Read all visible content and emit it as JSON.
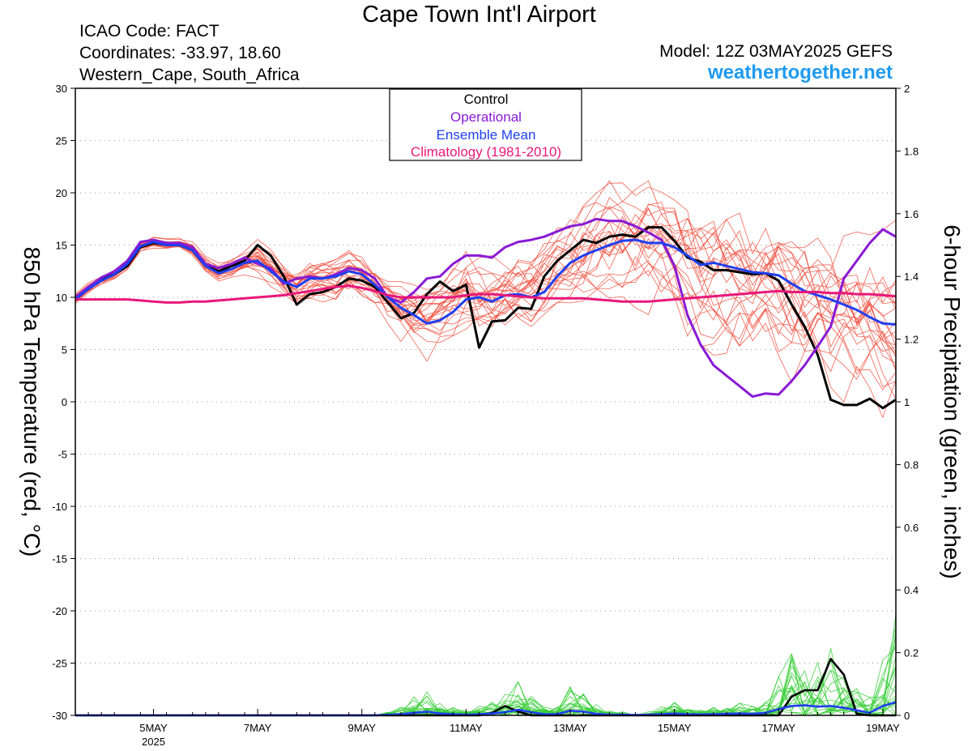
{
  "header": {
    "title": "Cape Town Int'l Airport",
    "icao": "ICAO Code: FACT",
    "coordinates": "Coordinates: -33.97, 18.60",
    "region": "Western_Cape, South_Africa",
    "model": "Model: 12Z 03MAY2025 GEFS",
    "site": "weathertogether.net"
  },
  "legend": {
    "entries": [
      {
        "label": "Control",
        "color": "#000000"
      },
      {
        "label": "Operational",
        "color": "#8a1ad6"
      },
      {
        "label": "Ensemble Mean",
        "color": "#1f3ff0"
      },
      {
        "label": "Climatology (1981-2010)",
        "color": "#e8187a"
      }
    ]
  },
  "colors": {
    "control": "#000000",
    "operational": "#8a1ad6",
    "mean": "#1f3ff0",
    "climatology": "#e8187a",
    "members_temp": "#f04a3a",
    "members_precip": "#33cc33"
  },
  "chart_data": {
    "type": "line",
    "ylabel": "850 hPa Temperature (red, °C)",
    "y2label": "6-hour Precipitation (green, inches)",
    "ylim": [
      -30,
      30
    ],
    "y2lim": [
      0,
      2
    ],
    "yticks": [
      "30",
      "25",
      "20",
      "15",
      "10",
      "5",
      "0",
      "-5",
      "-10",
      "-15",
      "-20",
      "-25",
      "-30"
    ],
    "y2ticks": [
      "2",
      "1.8",
      "1.6",
      "1.4",
      "1.2",
      "1",
      "0.8",
      "0.6",
      "0.4",
      "0.2",
      "0"
    ],
    "xlim": [
      0,
      63
    ],
    "x_unit": "6-hour steps from 18Z 03MAY2025",
    "xticks": [
      {
        "label": "5MAY",
        "sublabel": "2025",
        "x": 6
      },
      {
        "label": "7MAY",
        "x": 14
      },
      {
        "label": "9MAY",
        "x": 22
      },
      {
        "label": "11MAY",
        "x": 30
      },
      {
        "label": "13MAY",
        "x": 38
      },
      {
        "label": "15MAY",
        "x": 46
      },
      {
        "label": "17MAY",
        "x": 54
      },
      {
        "label": "19MAY",
        "x": 62
      }
    ],
    "grid": true,
    "legend_position": "top-center",
    "series": [
      {
        "name": "Control",
        "axis": "temp",
        "values": [
          10,
          11,
          11.8,
          12.2,
          13,
          14.8,
          15.2,
          15,
          15,
          14.5,
          13,
          12.5,
          13,
          13.5,
          15,
          14,
          12,
          9.3,
          10.3,
          10.5,
          11,
          11.8,
          11.6,
          11,
          9.5,
          8,
          8.5,
          10.3,
          11.5,
          10.6,
          11.2,
          5.2,
          7.7,
          7.8,
          9,
          8.9,
          12,
          13.5,
          14.5,
          15.5,
          15.2,
          15.8,
          16,
          15.8,
          16.7,
          16.7,
          15.4,
          13.8,
          13.4,
          12.6,
          12.6,
          12.4,
          12.2,
          12.3,
          11.6,
          9.3,
          7.2,
          4.5,
          0.2,
          -0.3,
          -0.3,
          0.3,
          -0.6,
          0.2
        ]
      },
      {
        "name": "Operational",
        "axis": "temp",
        "values": [
          10,
          11,
          11.9,
          12.5,
          13.5,
          15.3,
          15.5,
          15.2,
          15.2,
          14.8,
          13.2,
          12.8,
          13.2,
          13.8,
          13.2,
          12.8,
          11.3,
          11.8,
          12,
          11.8,
          12.2,
          12.8,
          12.6,
          11.8,
          10,
          9.5,
          10.5,
          11.8,
          12,
          13.2,
          14,
          14,
          13.8,
          14.8,
          15.3,
          15.5,
          15.8,
          16.3,
          16.8,
          17,
          17.5,
          17.3,
          17.3,
          16.8,
          16.2,
          15.5,
          13,
          8.3,
          5.5,
          3.5,
          2.5,
          1.5,
          0.5,
          0.8,
          0.7,
          2,
          3.5,
          5.3,
          7.2,
          11.8,
          13.5,
          15.2,
          16.5,
          15.8
        ]
      },
      {
        "name": "Ensemble Mean",
        "axis": "temp",
        "values": [
          9.8,
          10.8,
          11.6,
          12.2,
          13.2,
          14.9,
          15.3,
          15,
          15,
          14.5,
          13,
          12.3,
          12.7,
          13.3,
          13.5,
          12.5,
          11.5,
          11,
          11.8,
          11.8,
          12,
          12.5,
          12.2,
          11.2,
          10,
          9,
          8.3,
          7.5,
          7.8,
          8.6,
          9.8,
          10,
          9.6,
          10.2,
          10.3,
          10,
          10.5,
          12,
          13.3,
          14,
          14.5,
          15,
          15.4,
          15.5,
          15.2,
          15.2,
          14.8,
          14,
          13.1,
          13.3,
          13,
          12.7,
          12.4,
          12.3,
          12.1,
          11.3,
          10.6,
          10.2,
          9.8,
          9.3,
          8.8,
          8.1,
          7.5,
          7.4
        ]
      },
      {
        "name": "Climatology (1981-2010)",
        "axis": "temp",
        "values": [
          9.8,
          9.8,
          9.8,
          9.8,
          9.8,
          9.7,
          9.6,
          9.5,
          9.5,
          9.6,
          9.6,
          9.7,
          9.8,
          9.9,
          10,
          10.1,
          10.2,
          10.4,
          10.6,
          10.8,
          11,
          11.1,
          10.9,
          10.6,
          10.2,
          10,
          10,
          10,
          10,
          10,
          10.2,
          10.3,
          10.3,
          10.2,
          10.1,
          10,
          9.9,
          9.9,
          9.9,
          9.9,
          9.8,
          9.7,
          9.6,
          9.6,
          9.6,
          9.7,
          9.8,
          9.9,
          10,
          10.1,
          10.2,
          10.3,
          10.4,
          10.5,
          10.6,
          10.5,
          10.5,
          10.5,
          10.4,
          10.4,
          10.3,
          10.3,
          10.2,
          10.1
        ]
      },
      {
        "name": "Control",
        "axis": "precip",
        "values": [
          0,
          0,
          0,
          0,
          0,
          0,
          0,
          0,
          0,
          0,
          0,
          0,
          0,
          0,
          0,
          0,
          0,
          0,
          0,
          0,
          0,
          0,
          0,
          0,
          0,
          0,
          0,
          0,
          0,
          0,
          0,
          0,
          0.008,
          0.03,
          0.012,
          0,
          0,
          0,
          0,
          0,
          0,
          0,
          0,
          0,
          0,
          0,
          0,
          0,
          0,
          0,
          0,
          0,
          0,
          0,
          0,
          0.06,
          0.08,
          0.08,
          0.18,
          0.13,
          0.005,
          0,
          0,
          0
        ]
      },
      {
        "name": "Ensemble Mean",
        "axis": "precip",
        "values": [
          0,
          0,
          0,
          0,
          0,
          0,
          0,
          0,
          0,
          0,
          0,
          0,
          0,
          0,
          0,
          0,
          0,
          0,
          0,
          0,
          0,
          0,
          0,
          0,
          0.002,
          0.004,
          0.008,
          0.012,
          0.006,
          0.004,
          0.002,
          0.004,
          0.006,
          0.01,
          0.018,
          0.01,
          0.004,
          0.004,
          0.015,
          0.012,
          0.005,
          0.002,
          0.002,
          0.001,
          0.002,
          0.004,
          0.006,
          0.004,
          0.003,
          0.004,
          0.005,
          0.006,
          0.005,
          0.008,
          0.02,
          0.03,
          0.032,
          0.028,
          0.03,
          0.024,
          0.016,
          0.008,
          0.03,
          0.042
        ]
      }
    ]
  }
}
